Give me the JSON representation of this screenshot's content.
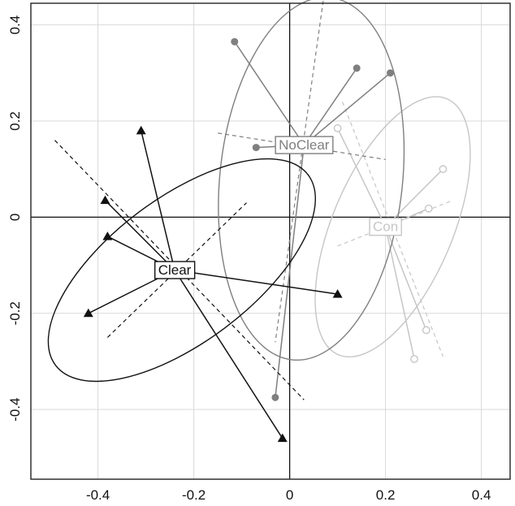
{
  "chart_data": {
    "type": "scatter",
    "title": "",
    "xlabel": "",
    "ylabel": "",
    "xlim": [
      -0.54,
      0.46
    ],
    "ylim": [
      -0.545,
      0.445
    ],
    "x_ticks": [
      "-0.4",
      "-0.2",
      "0",
      "0.2",
      "0.4"
    ],
    "y_ticks": [
      "-0.4",
      "-0.2",
      "0",
      "0.2",
      "0.4"
    ],
    "grid": true,
    "legend": "none",
    "groups": [
      {
        "name": "Clear",
        "color": "#111111",
        "marker": "filled-triangle",
        "centroid": [
          -0.24,
          -0.11
        ],
        "ellipse": {
          "cx": -0.225,
          "cy": -0.11,
          "rx": 0.33,
          "ry": 0.15,
          "angle_deg": -37
        },
        "axis_ends": [
          [
            -0.49,
            0.16
          ],
          [
            0.03,
            -0.38
          ],
          [
            -0.38,
            -0.25
          ],
          [
            -0.09,
            0.03
          ]
        ],
        "points": [
          [
            -0.31,
            0.18
          ],
          [
            -0.385,
            0.035
          ],
          [
            -0.38,
            -0.04
          ],
          [
            -0.42,
            -0.2
          ],
          [
            0.1,
            -0.16
          ],
          [
            -0.015,
            -0.46
          ]
        ]
      },
      {
        "name": "NoClear",
        "color": "#7f7f7f",
        "marker": "filled-circle",
        "centroid": [
          0.03,
          0.15
        ],
        "ellipse": {
          "cx": 0.045,
          "cy": 0.08,
          "rx": 0.38,
          "ry": 0.19,
          "angle_deg": -84
        },
        "axis_ends": [
          [
            0.07,
            0.45
          ],
          [
            -0.03,
            -0.26
          ],
          [
            -0.15,
            0.175
          ],
          [
            0.2,
            0.12
          ]
        ],
        "points": [
          [
            -0.115,
            0.365
          ],
          [
            -0.07,
            0.145
          ],
          [
            0.14,
            0.31
          ],
          [
            0.21,
            0.3
          ],
          [
            -0.03,
            -0.375
          ]
        ]
      },
      {
        "name": "Con",
        "color": "#c6c6c6",
        "marker": "open-circle",
        "centroid": [
          0.2,
          -0.02
        ],
        "ellipse": {
          "cx": 0.215,
          "cy": -0.02,
          "rx": 0.29,
          "ry": 0.125,
          "angle_deg": -67
        },
        "axis_ends": [
          [
            0.11,
            0.24
          ],
          [
            0.32,
            -0.29
          ],
          [
            0.1,
            -0.06
          ],
          [
            0.34,
            0.035
          ]
        ],
        "points": [
          [
            0.1,
            0.185
          ],
          [
            0.32,
            0.1
          ],
          [
            0.29,
            0.018
          ],
          [
            0.285,
            -0.235
          ],
          [
            0.26,
            -0.295
          ]
        ]
      }
    ]
  }
}
